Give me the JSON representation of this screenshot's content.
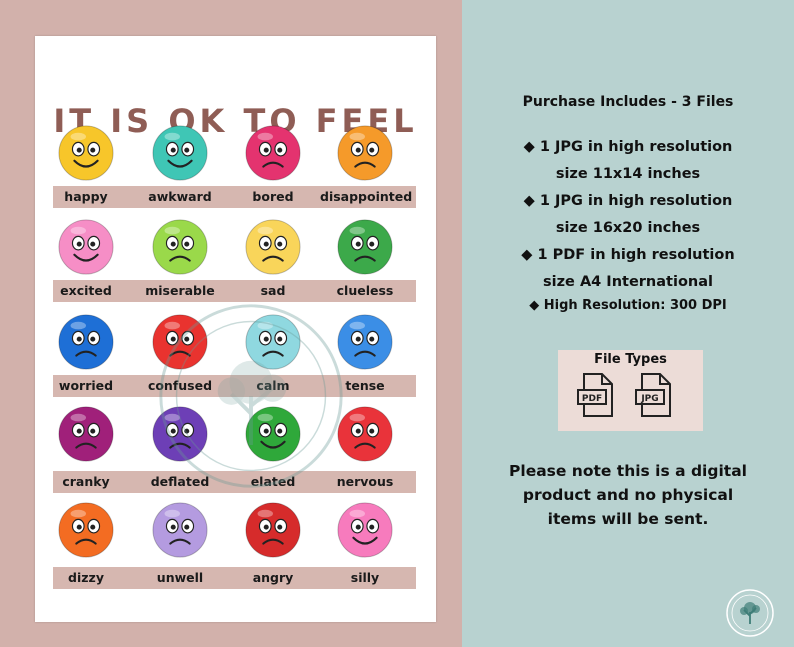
{
  "poster": {
    "title": "IT IS OK TO FEEL",
    "emotions": [
      {
        "label": "happy",
        "color": "#f7c62a"
      },
      {
        "label": "awkward",
        "color": "#3fc6b5"
      },
      {
        "label": "bored",
        "color": "#e4336f"
      },
      {
        "label": "disappointed",
        "color": "#f59a2a"
      },
      {
        "label": "excited",
        "color": "#f68ec6"
      },
      {
        "label": "miserable",
        "color": "#9ad94a"
      },
      {
        "label": "sad",
        "color": "#f9d55a"
      },
      {
        "label": "clueless",
        "color": "#3ca94a"
      },
      {
        "label": "worried",
        "color": "#1e6fd6"
      },
      {
        "label": "confused",
        "color": "#e9332f"
      },
      {
        "label": "calm",
        "color": "#8fd8e0"
      },
      {
        "label": "tense",
        "color": "#3b8ee6"
      },
      {
        "label": "cranky",
        "color": "#a0207a"
      },
      {
        "label": "deflated",
        "color": "#6d3fb6"
      },
      {
        "label": "elated",
        "color": "#2fa83a"
      },
      {
        "label": "nervous",
        "color": "#e9333a"
      },
      {
        "label": "dizzy",
        "color": "#f36c22"
      },
      {
        "label": "unwell",
        "color": "#b49be0"
      },
      {
        "label": "angry",
        "color": "#d62b2b"
      },
      {
        "label": "silly",
        "color": "#f77bbd"
      }
    ]
  },
  "info": {
    "heading": "Purchase Includes - 3 Files",
    "items": [
      "◆ 1 JPG in high resolution",
      "size 11x14 inches",
      "◆ 1 JPG in high resolution",
      "size 16x20 inches",
      "◆ 1 PDF in high resolution",
      "size A4 International",
      "◆ High Resolution: 300 DPI"
    ],
    "file_types_title": "File Types",
    "file_icons": [
      {
        "label": "PDF",
        "icon": "pdf-file-icon"
      },
      {
        "label": "JPG",
        "icon": "jpg-file-icon"
      }
    ],
    "note_lines": [
      "Please note this is a digital",
      "product and no physical",
      "items will be sent."
    ]
  },
  "colors": {
    "mat": "#d2b1ab",
    "band": "#d6b7b0",
    "title": "#8f5d55",
    "background": "#b8d2d0"
  }
}
